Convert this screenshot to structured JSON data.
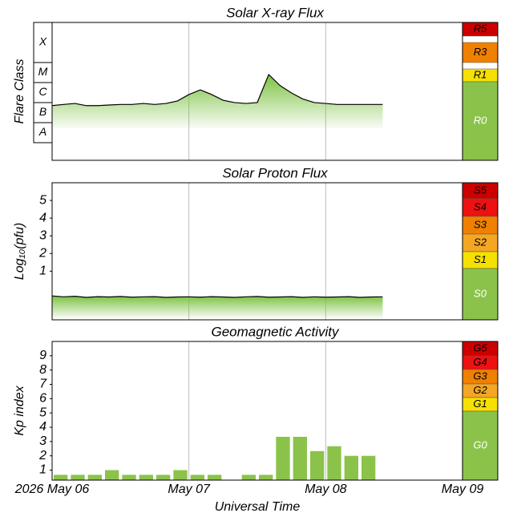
{
  "chart_data": [
    {
      "type": "area-line",
      "title": "Solar X-ray Flux",
      "y_label": "Flare Class",
      "log_scale": true,
      "class_labels": [
        "X",
        "M",
        "C",
        "B",
        "A"
      ],
      "x": [
        0,
        2,
        4,
        6,
        8,
        10,
        12,
        14,
        16,
        18,
        20,
        22,
        24,
        26,
        28,
        30,
        32,
        34,
        36,
        38,
        40,
        42,
        44,
        46,
        48,
        50,
        52,
        54,
        56,
        58
      ],
      "values": [
        7e-07,
        8e-07,
        9e-07,
        7e-07,
        7e-07,
        7.5e-07,
        8e-07,
        8e-07,
        9e-07,
        8e-07,
        9e-07,
        1.2e-06,
        2.5e-06,
        4.3e-06,
        2.5e-06,
        1.3e-06,
        1e-06,
        9e-07,
        1e-06,
        2.5e-05,
        7e-06,
        3e-06,
        1.5e-06,
        1e-06,
        9e-07,
        8e-07,
        8e-07,
        8e-07,
        8e-07,
        8e-07
      ],
      "color": "#7cc242",
      "line_color": "#000000",
      "xlim": [
        0,
        72
      ],
      "ylim": [
        1.3e-09,
        0.01
      ],
      "scale": [
        {
          "label": "R5",
          "color": "#cc0000"
        },
        {
          "label": "R3",
          "color": "#f08000"
        },
        {
          "label": "R1",
          "color": "#f5e000"
        },
        {
          "label": "R0",
          "color": "#8bc34a"
        }
      ]
    },
    {
      "type": "area-line",
      "title": "Solar Proton Flux",
      "y_label": "Log₁₀(pfu)",
      "x": [
        0,
        2,
        4,
        6,
        8,
        10,
        12,
        14,
        16,
        18,
        20,
        22,
        24,
        26,
        28,
        30,
        32,
        34,
        36,
        38,
        40,
        42,
        44,
        46,
        48,
        50,
        52,
        54,
        56,
        58
      ],
      "values": [
        -0.4,
        -0.45,
        -0.42,
        -0.48,
        -0.44,
        -0.46,
        -0.43,
        -0.47,
        -0.45,
        -0.44,
        -0.48,
        -0.46,
        -0.45,
        -0.47,
        -0.44,
        -0.46,
        -0.48,
        -0.45,
        -0.43,
        -0.47,
        -0.46,
        -0.44,
        -0.48,
        -0.45,
        -0.47,
        -0.46,
        -0.44,
        -0.48,
        -0.46,
        -0.45
      ],
      "color": "#7cc242",
      "line_color": "#000000",
      "xlim": [
        0,
        72
      ],
      "ylim": [
        -1.75,
        6
      ],
      "yticks": [
        1,
        2,
        3,
        4,
        5
      ],
      "scale": [
        {
          "label": "S5",
          "color": "#cc0000"
        },
        {
          "label": "S4",
          "color": "#ee1111"
        },
        {
          "label": "S3",
          "color": "#f08000"
        },
        {
          "label": "S2",
          "color": "#f5a623"
        },
        {
          "label": "S1",
          "color": "#f5e000"
        },
        {
          "label": "S0",
          "color": "#8bc34a"
        }
      ]
    },
    {
      "type": "bar",
      "title": "Geomagnetic Activity",
      "y_label": "Kp index",
      "x_label": "Universal Time",
      "x": [
        0,
        3,
        6,
        9,
        12,
        15,
        18,
        21,
        24,
        27,
        30,
        33,
        36,
        39,
        42,
        45,
        48,
        51,
        54
      ],
      "values": [
        0.67,
        0.67,
        0.67,
        1,
        0.67,
        0.67,
        0.67,
        1,
        0.67,
        0.67,
        0.33,
        0.67,
        0.67,
        3.33,
        3.33,
        2.33,
        2.67,
        2,
        2
      ],
      "color": "#8bc34a",
      "xlim": [
        0,
        72
      ],
      "ylim": [
        0.3,
        10
      ],
      "yticks": [
        1,
        2,
        3,
        4,
        5,
        6,
        7,
        8,
        9
      ],
      "xticks": [
        {
          "value": 0,
          "label": "2026 May 06"
        },
        {
          "value": 24,
          "label": "May 07"
        },
        {
          "value": 48,
          "label": "May 08"
        },
        {
          "value": 72,
          "label": "May 09"
        }
      ],
      "scale": [
        {
          "label": "G5",
          "color": "#cc0000"
        },
        {
          "label": "G4",
          "color": "#ee1111"
        },
        {
          "label": "G3",
          "color": "#f08000"
        },
        {
          "label": "G2",
          "color": "#f5a623"
        },
        {
          "label": "G1",
          "color": "#f5e000"
        },
        {
          "label": "G0",
          "color": "#8bc34a"
        }
      ]
    }
  ]
}
